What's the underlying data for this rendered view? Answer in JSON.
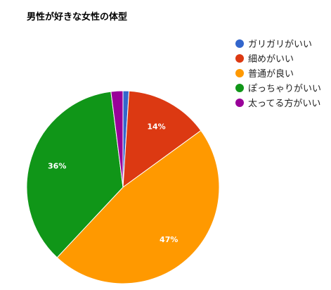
{
  "chart_data": {
    "type": "pie",
    "title": "男性が好きな女性の体型",
    "legend_position": "right",
    "categories": [
      "ガリガリがいい",
      "細めがいい",
      "普通が良い",
      "ぽっちゃりがいい",
      "太ってる方がいい"
    ],
    "values": [
      1,
      14,
      47,
      36,
      2
    ],
    "data_labels": [
      "",
      "14%",
      "47%",
      "36%",
      ""
    ],
    "colors": [
      "#3366cc",
      "#dc3912",
      "#ff9900",
      "#109618",
      "#990099"
    ]
  }
}
